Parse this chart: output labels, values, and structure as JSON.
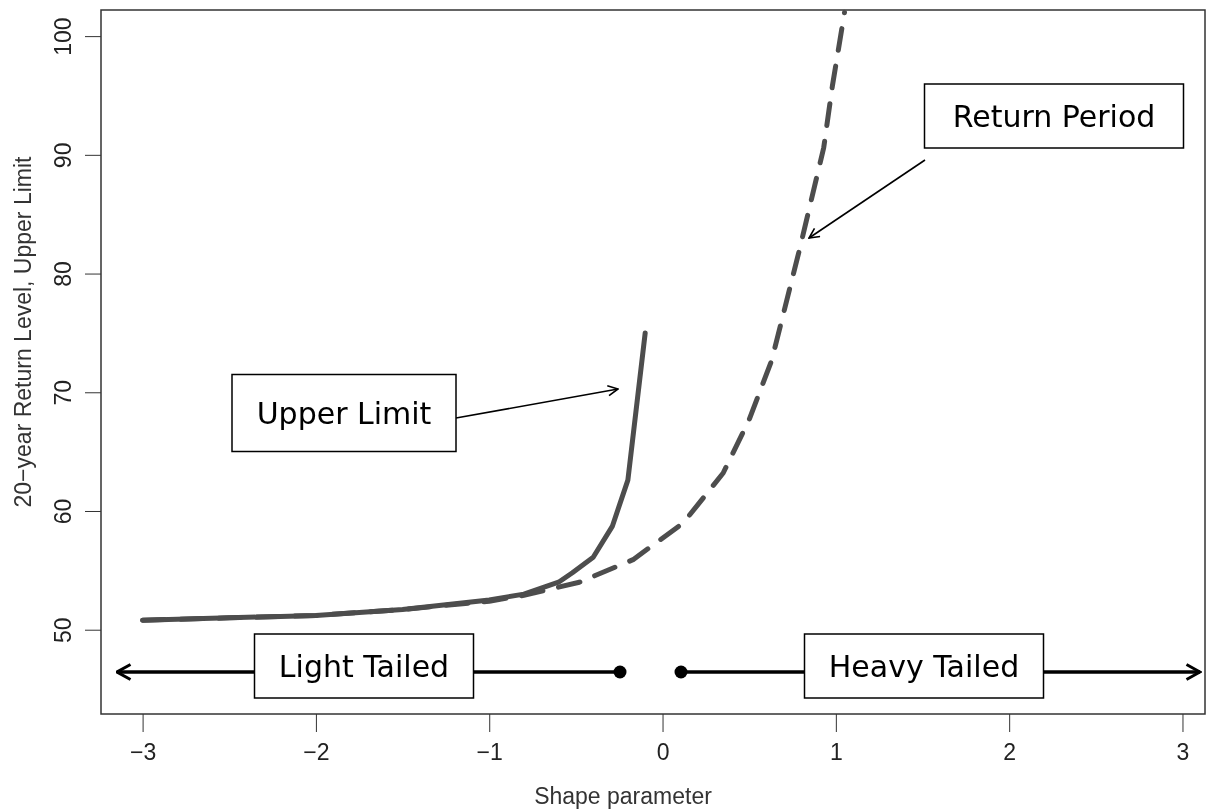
{
  "chart_data": {
    "type": "line",
    "xlabel": "Shape parameter",
    "ylabel": "20−year Return Level, Upper Limit",
    "xlim": [
      -3.24,
      3.13
    ],
    "ylim": [
      42.9,
      102.2
    ],
    "xticks": [
      {
        "value": -3,
        "label": "−3"
      },
      {
        "value": -2,
        "label": "−2"
      },
      {
        "value": -1,
        "label": "−1"
      },
      0,
      1,
      2,
      3
    ],
    "yticks": [
      50,
      60,
      70,
      80,
      90,
      100
    ],
    "grid": false,
    "marker": "none",
    "series": [
      {
        "color": "#4d4d4d",
        "line_style": "solid",
        "x": [
          -3,
          -2.5,
          -2,
          -1.5,
          -1,
          -0.8,
          -0.6,
          -0.52,
          -0.4,
          -0.29,
          -0.2,
          -0.1
        ],
        "values": [
          50.8,
          51.0,
          51.2,
          51.7,
          52.5,
          53.0,
          54.0,
          54.8,
          56.1,
          58.7,
          62.6,
          75.0
        ]
      },
      {
        "color": "#4d4d4d",
        "line_style": "dashed",
        "x": [
          -3,
          -2.5,
          -2,
          -1.5,
          -1,
          -0.8,
          -0.48,
          -0.17,
          0.12,
          0.35,
          0.5,
          0.63,
          0.79,
          0.93,
          0.98,
          1.05
        ],
        "values": [
          50.8,
          51.0,
          51.2,
          51.7,
          52.4,
          52.9,
          54.0,
          55.9,
          59.0,
          63.2,
          67.7,
          72.7,
          82.0,
          90.6,
          95.8,
          102.0
        ]
      }
    ],
    "annotations": [
      "Upper Limit",
      "Return Period",
      "Light Tailed",
      "Heavy Tailed"
    ]
  }
}
